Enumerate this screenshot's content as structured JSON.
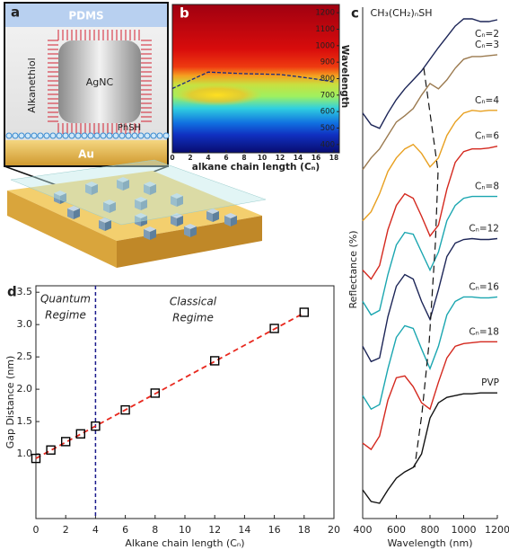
{
  "diagram": {
    "label": "a",
    "top_layer": "PDMS",
    "bottom_layer": "Au",
    "particle": "AgNC",
    "ligand": "Alkanethiol",
    "linker": "PhSH"
  },
  "chart_data": [
    {
      "type": "heatmap",
      "panel": "b",
      "x_label": "alkane chain length (Cₙ)",
      "y_label": "Wavelength",
      "xlim": [
        0,
        18.6
      ],
      "xticks": [
        0,
        2,
        4,
        6,
        8,
        10,
        12,
        14,
        16,
        18
      ],
      "ylim": [
        350,
        1250
      ],
      "yticks": [
        400,
        500,
        600,
        700,
        800,
        900,
        1000,
        1100,
        1200
      ],
      "line": {
        "x": [
          0,
          2,
          4,
          6,
          8,
          10,
          12,
          14,
          16,
          18
        ],
        "values": [
          740,
          790,
          840,
          835,
          830,
          828,
          825,
          812,
          797,
          780
        ],
        "color": "#1a2a80"
      }
    },
    {
      "type": "line",
      "panel": "c",
      "title": "CH₃(CH₂)ₙSH",
      "x_label": "Wavelength (nm)",
      "y_label": "Reflectance (%)",
      "xlim": [
        400,
        1200
      ],
      "xticks": [
        400,
        600,
        800,
        1000,
        1200
      ],
      "ylim": [
        0,
        570
      ],
      "x": [
        400,
        450,
        500,
        550,
        600,
        650,
        700,
        750,
        800,
        850,
        900,
        950,
        1000,
        1050,
        1100,
        1150,
        1200
      ],
      "series": [
        {
          "name": "Cₙ=2",
          "color": "#1c2557",
          "values": [
            452,
            439,
            435,
            452,
            467,
            479,
            489,
            499,
            512,
            525,
            537,
            549,
            557,
            557,
            554,
            554,
            556
          ]
        },
        {
          "name": "Cₙ=3",
          "color": "#9b7a4f",
          "values": [
            389,
            402,
            412,
            427,
            442,
            449,
            457,
            472,
            485,
            479,
            489,
            502,
            512,
            515,
            515,
            516,
            517
          ]
        },
        {
          "name": "Cₙ=4",
          "color": "#e8a020",
          "values": [
            332,
            342,
            362,
            387,
            402,
            412,
            417,
            407,
            392,
            402,
            427,
            442,
            452,
            455,
            454,
            455,
            455
          ]
        },
        {
          "name": "Cₙ=6",
          "color": "#d4281e",
          "values": [
            277,
            267,
            282,
            322,
            349,
            362,
            357,
            337,
            315,
            327,
            367,
            397,
            409,
            412,
            412,
            413,
            415
          ]
        },
        {
          "name": "Cₙ=8",
          "color": "#1aa6b0",
          "values": [
            242,
            227,
            232,
            272,
            305,
            319,
            317,
            297,
            277,
            297,
            332,
            349,
            357,
            359,
            359,
            359,
            359
          ]
        },
        {
          "name": "Cₙ=12",
          "color": "#1c2557",
          "values": [
            192,
            175,
            179,
            225,
            259,
            272,
            267,
            242,
            222,
            255,
            292,
            307,
            311,
            312,
            311,
            311,
            312
          ]
        },
        {
          "name": "Cₙ=16",
          "color": "#1aa6b0",
          "values": [
            137,
            122,
            127,
            167,
            202,
            215,
            212,
            189,
            167,
            192,
            227,
            242,
            247,
            247,
            246,
            246,
            247
          ]
        },
        {
          "name": "Cₙ=18",
          "color": "#d4281e",
          "values": [
            84,
            77,
            92,
            132,
            157,
            159,
            147,
            129,
            122,
            152,
            179,
            192,
            195,
            196,
            197,
            197,
            197
          ]
        },
        {
          "name": "PVP",
          "color": "#111111",
          "values": [
            32,
            19,
            17,
            32,
            45,
            52,
            57,
            72,
            112,
            129,
            135,
            137,
            139,
            139,
            140,
            140,
            140
          ]
        }
      ],
      "guide": {
        "x": [
          763,
          848,
          832,
          795,
          752,
          709
        ],
        "values": [
          502,
          387,
          307,
          197,
          117,
          57
        ],
        "color": "#111111"
      }
    },
    {
      "type": "scatter",
      "panel": "d",
      "x_label": "Alkane chain length (Cₙ)",
      "y_label": "Gap Distance (nm)",
      "xlim": [
        0,
        20
      ],
      "xticks": [
        0,
        2,
        4,
        6,
        8,
        10,
        12,
        14,
        16,
        18,
        20
      ],
      "ylim": [
        0,
        3.6
      ],
      "yticks": [
        {
          "value": 1,
          "label": "1.0"
        },
        1.5,
        {
          "value": 2,
          "label": "2.0"
        },
        2.5,
        {
          "value": 3,
          "label": "3.0"
        },
        3.5
      ],
      "x": [
        0,
        1,
        2,
        3,
        4,
        6,
        8,
        12,
        16,
        18
      ],
      "values": [
        0.93,
        1.06,
        1.19,
        1.31,
        1.43,
        1.68,
        1.94,
        2.44,
        2.94,
        3.19
      ],
      "color": "#000000",
      "fit": {
        "x": [
          0,
          18
        ],
        "values": [
          0.93,
          3.18
        ],
        "color": "#e8281e"
      },
      "boundary_x": 4,
      "boundary_color": "#1a1a8c",
      "regions": [
        {
          "lines": [
            "Quantum",
            "Regime"
          ]
        },
        {
          "lines": [
            "Classical",
            "Regime"
          ]
        }
      ]
    }
  ]
}
